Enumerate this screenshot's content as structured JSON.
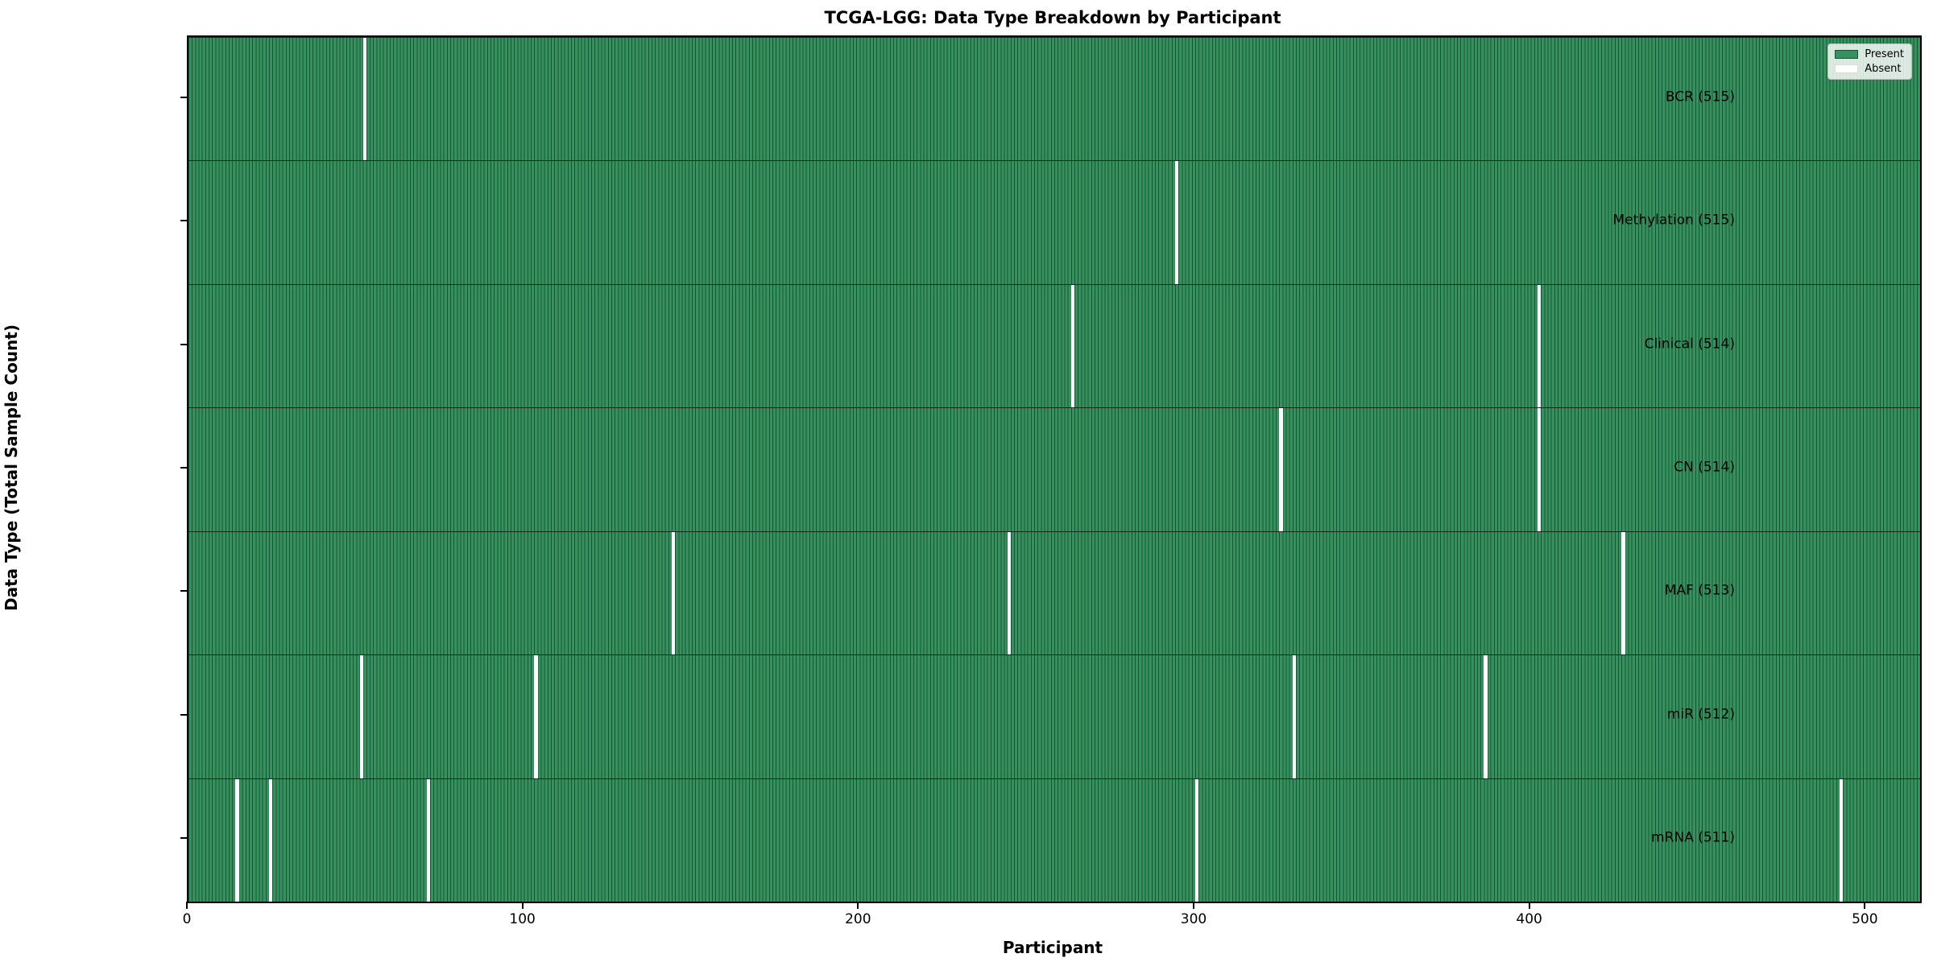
{
  "chart_data": {
    "type": "heatmap",
    "title": "TCGA-LGG: Data Type Breakdown by Participant",
    "xlabel": "Participant",
    "ylabel": "Data Type (Total Sample Count)",
    "x_ticks": [
      0,
      100,
      200,
      300,
      400,
      500
    ],
    "x_range": [
      0,
      516
    ],
    "total_participants": 516,
    "grid": false,
    "legend_position": "upper right",
    "legend": [
      {
        "label": "Present",
        "color": "#2e8b57"
      },
      {
        "label": "Absent",
        "color": "#ffffff"
      }
    ],
    "present_color": "#35925f",
    "bar_edge_color": "#1d5236",
    "rows": [
      {
        "label": "BCR (515)",
        "data_type": "BCR",
        "present_count": 515,
        "absent_participants": [
          52
        ]
      },
      {
        "label": "Methylation (515)",
        "data_type": "Methylation",
        "present_count": 515,
        "absent_participants": [
          294
        ]
      },
      {
        "label": "Clinical (514)",
        "data_type": "Clinical",
        "present_count": 514,
        "absent_participants": [
          263,
          402
        ]
      },
      {
        "label": "CN (514)",
        "data_type": "CN",
        "present_count": 514,
        "absent_participants": [
          325,
          402
        ]
      },
      {
        "label": "MAF (513)",
        "data_type": "MAF",
        "present_count": 513,
        "absent_participants": [
          144,
          244,
          427
        ]
      },
      {
        "label": "miR (512)",
        "data_type": "miR",
        "present_count": 512,
        "absent_participants": [
          51,
          103,
          329,
          386
        ]
      },
      {
        "label": "mRNA (511)",
        "data_type": "mRNA",
        "present_count": 511,
        "absent_participants": [
          14,
          24,
          71,
          300,
          492
        ]
      }
    ]
  }
}
